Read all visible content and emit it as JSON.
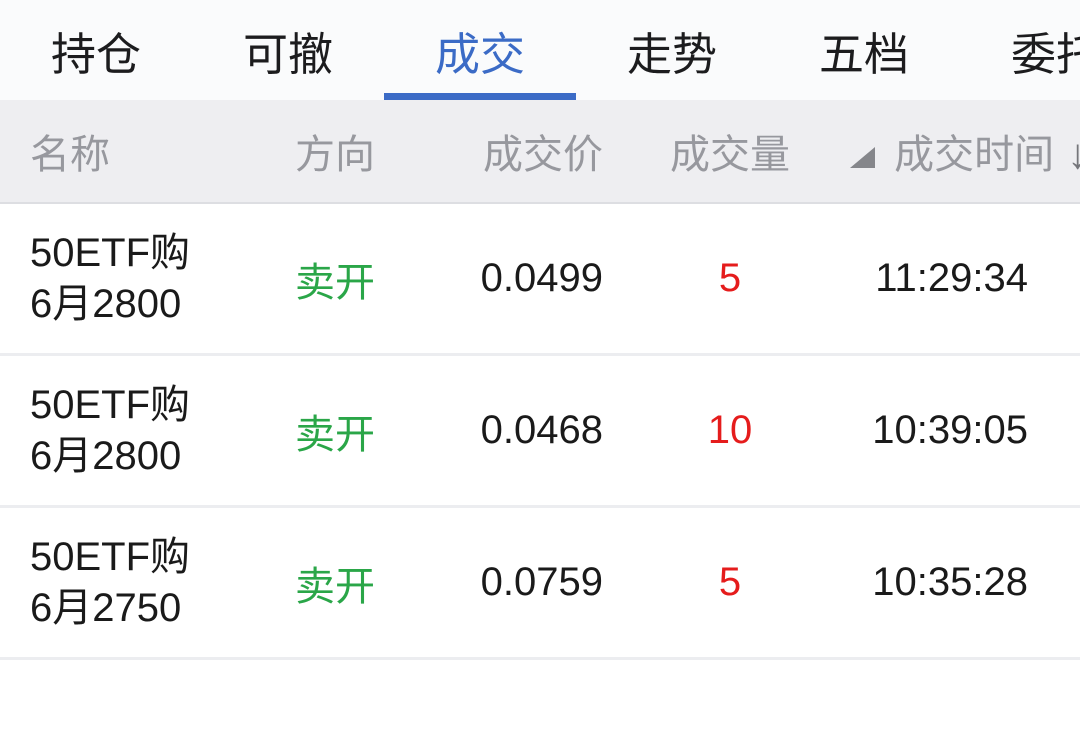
{
  "tabs": [
    {
      "label": "持仓",
      "active": false
    },
    {
      "label": "可撤",
      "active": false
    },
    {
      "label": "成交",
      "active": true
    },
    {
      "label": "走势",
      "active": false
    },
    {
      "label": "五档",
      "active": false
    },
    {
      "label": "委托",
      "active": false
    }
  ],
  "table": {
    "headers": {
      "name": "名称",
      "direction": "方向",
      "price": "成交价",
      "volume": "成交量",
      "time": "成交时间"
    },
    "icons": {
      "sort_arrow_desc": "↓"
    },
    "sort": {
      "column": "成交时间",
      "order": "desc"
    },
    "rows": [
      {
        "name": "50ETF购6月2800",
        "name_lines": [
          "50ETF购",
          "6月2800"
        ],
        "direction": "卖开",
        "price": "0.0499",
        "volume": "5",
        "time": "11:29:34"
      },
      {
        "name": "50ETF购6月2800",
        "name_lines": [
          "50ETF购",
          "6月2800"
        ],
        "direction": "卖开",
        "price": "0.0468",
        "volume": "10",
        "time": "10:39:05"
      },
      {
        "name": "50ETF购6月2750",
        "name_lines": [
          "50ETF购",
          "6月2750"
        ],
        "direction": "卖开",
        "price": "0.0759",
        "volume": "5",
        "time": "10:35:28"
      }
    ]
  },
  "colors": {
    "accent_blue": "#3b6bc6",
    "sell_open_green": "#2aa648",
    "volume_red": "#e51c1c",
    "header_bg": "#eeeef1",
    "header_text": "#97989e",
    "tabbar_bg": "#fafbfc"
  }
}
